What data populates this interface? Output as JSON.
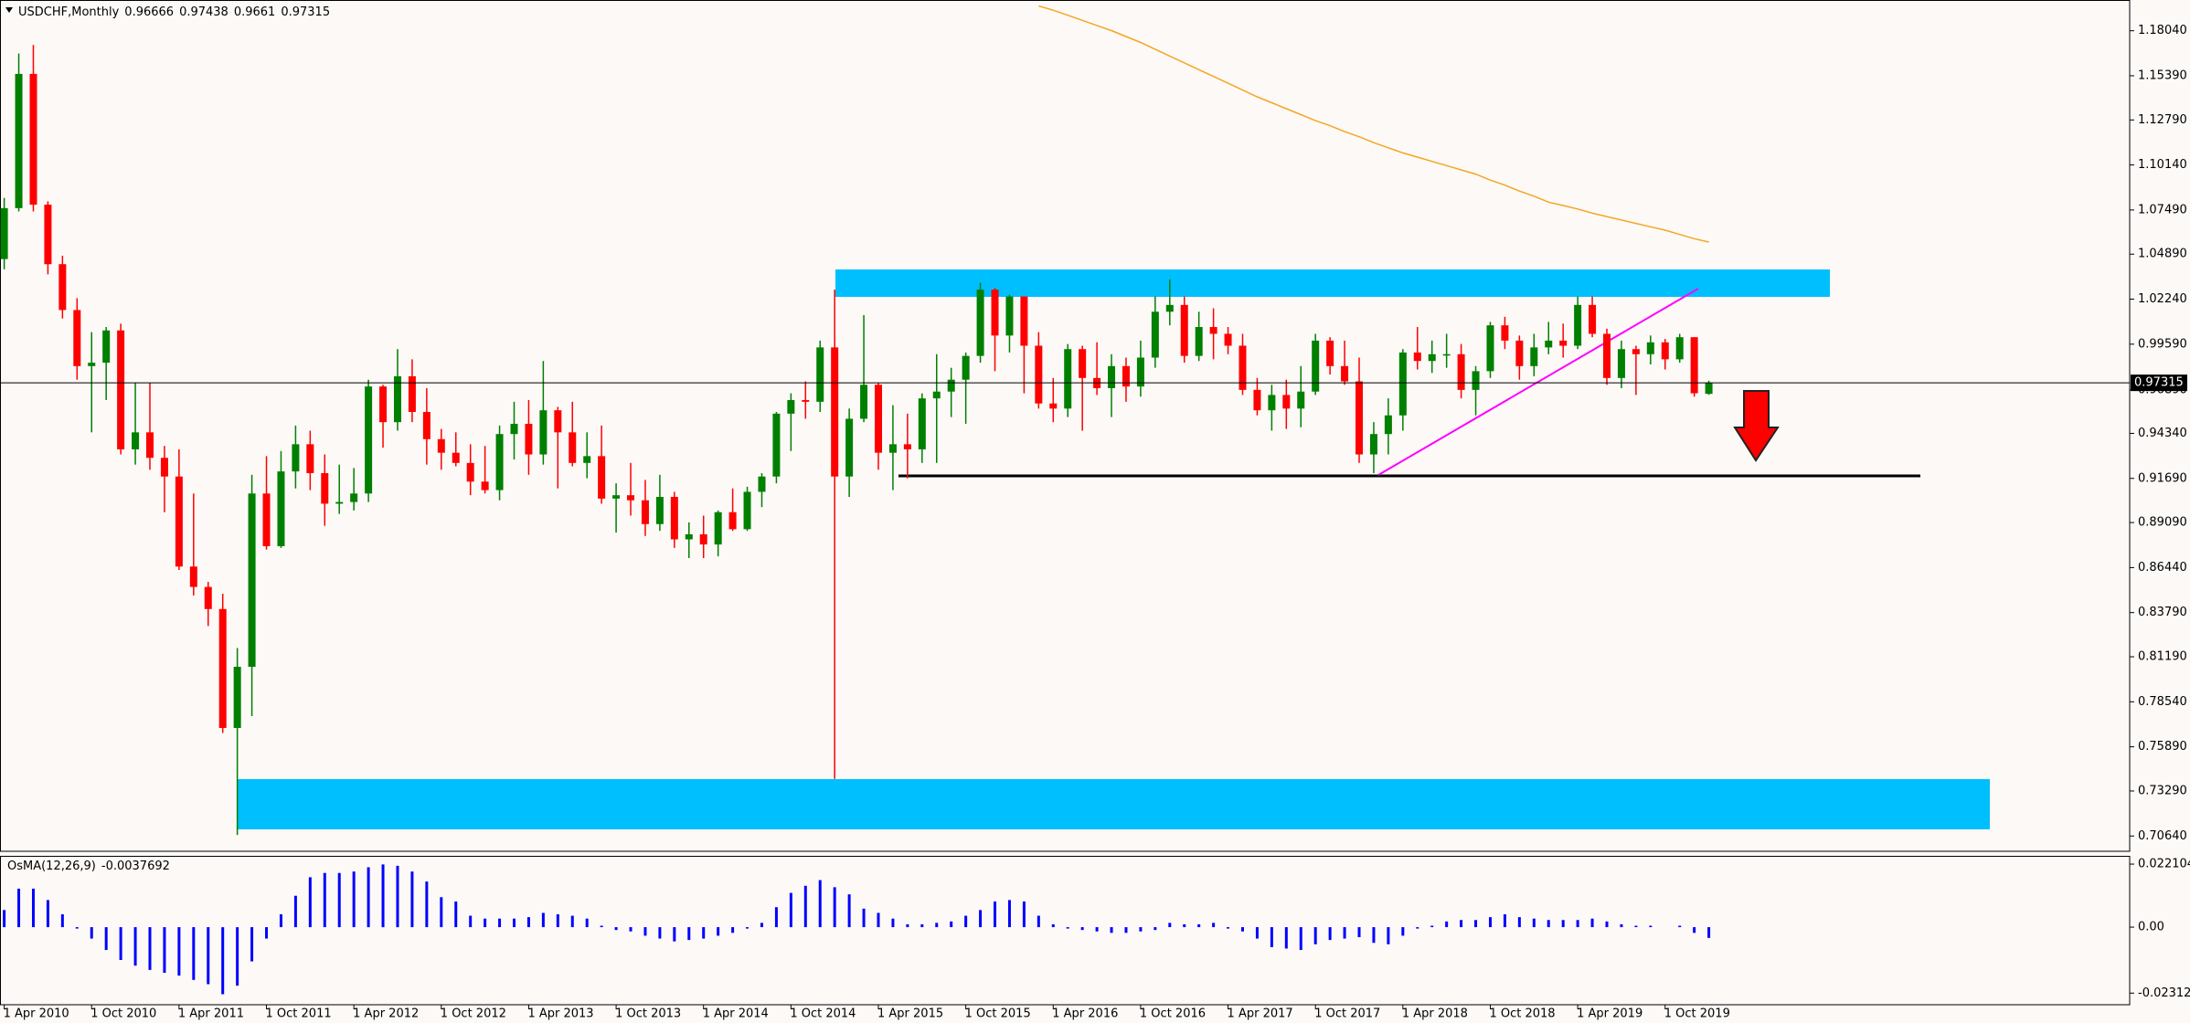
{
  "chart_data": [
    {
      "type": "candlestick",
      "title": "USDCHF,Monthly",
      "up_color": "#008000",
      "down_color": "#ff0000",
      "ma_color": "#f5a623",
      "categories": [
        "1 Apr 2010",
        null,
        null,
        null,
        null,
        null,
        "1 Oct 2010",
        null,
        null,
        null,
        null,
        null,
        "1 Apr 2011",
        null,
        null,
        null,
        null,
        null,
        "1 Oct 2011",
        null,
        null,
        null,
        null,
        null,
        "1 Apr 2012",
        null,
        null,
        null,
        null,
        null,
        "1 Oct 2012",
        null,
        null,
        null,
        null,
        null,
        "1 Apr 2013",
        null,
        null,
        null,
        null,
        null,
        "1 Oct 2013",
        null,
        null,
        null,
        null,
        null,
        "1 Apr 2014",
        null,
        null,
        null,
        null,
        null,
        "1 Oct 2014",
        null,
        null,
        null,
        null,
        null,
        "1 Apr 2015",
        null,
        null,
        null,
        null,
        null,
        "1 Oct 2015",
        null,
        null,
        null,
        null,
        null,
        "1 Apr 2016",
        null,
        null,
        null,
        null,
        null,
        "1 Oct 2016",
        null,
        null,
        null,
        null,
        null,
        "1 Apr 2017",
        null,
        null,
        null,
        null,
        null,
        "1 Oct 2017",
        null,
        null,
        null,
        null,
        null,
        "1 Apr 2018",
        null,
        null,
        null,
        null,
        null,
        "1 Oct 2018",
        null,
        null,
        null,
        null,
        null,
        "1 Apr 2019",
        null,
        null,
        null,
        null,
        null,
        "1 Oct 2019",
        null,
        null,
        null
      ],
      "open": [
        1.046,
        1.076,
        1.155,
        1.078,
        1.043,
        1.016,
        0.983,
        0.985,
        1.004,
        0.934,
        0.944,
        0.929,
        0.918,
        0.865,
        0.853,
        0.84,
        0.77,
        0.806,
        0.908,
        0.877,
        0.921,
        0.937,
        0.92,
        0.902,
        0.903,
        0.908,
        0.971,
        0.95,
        0.977,
        0.956,
        0.94,
        0.932,
        0.926,
        0.915,
        0.91,
        0.943,
        0.949,
        0.931,
        0.957,
        0.944,
        0.926,
        0.93,
        0.905,
        0.907,
        0.904,
        0.89,
        0.906,
        0.881,
        0.884,
        0.878,
        0.897,
        0.887,
        0.909,
        0.918,
        0.955,
        0.963,
        0.962,
        0.994,
        0.918,
        0.952,
        0.972,
        0.932,
        0.937,
        0.934,
        0.964,
        0.968,
        0.975,
        0.989,
        1.028,
        1.001,
        1.024,
        0.995,
        0.961,
        0.958,
        0.993,
        0.976,
        0.97,
        0.983,
        0.971,
        0.988,
        1.015,
        1.019,
        0.989,
        1.006,
        1.002,
        0.995,
        0.969,
        0.957,
        0.966,
        0.958,
        0.968,
        0.998,
        0.983,
        0.974,
        0.931,
        0.943,
        0.954,
        0.991,
        0.986,
        0.99,
        0.99,
        0.969,
        0.98,
        1.007,
        0.998,
        0.983,
        0.994,
        0.998,
        0.995,
        1.019,
        1.002,
        0.976,
        0.993,
        0.99,
        0.997,
        0.987,
        1.0,
        0.96666
      ],
      "high": [
        1.082,
        1.167,
        1.172,
        1.08,
        1.048,
        1.023,
        1.003,
        1.006,
        1.008,
        0.973,
        0.973,
        0.936,
        0.934,
        0.908,
        0.856,
        0.849,
        0.817,
        0.919,
        0.93,
        0.933,
        0.948,
        0.945,
        0.931,
        0.925,
        0.923,
        0.975,
        0.972,
        0.993,
        0.987,
        0.97,
        0.946,
        0.944,
        0.937,
        0.936,
        0.948,
        0.962,
        0.963,
        0.986,
        0.959,
        0.962,
        0.944,
        0.948,
        0.914,
        0.926,
        0.916,
        0.919,
        0.909,
        0.891,
        0.895,
        0.898,
        0.911,
        0.912,
        0.92,
        0.956,
        0.967,
        0.974,
        0.998,
        1.028,
        0.958,
        1.013,
        0.973,
        0.96,
        0.955,
        0.967,
        0.99,
        0.982,
        0.991,
        1.032,
        1.029,
        1.025,
        1.024,
        1.003,
        0.976,
        0.996,
        0.995,
        0.997,
        0.99,
        0.988,
        0.998,
        1.024,
        1.034,
        1.024,
        1.015,
        1.017,
        1.006,
        1.002,
        0.976,
        0.972,
        0.975,
        0.983,
        1.002,
        1.0,
        0.998,
        0.988,
        0.95,
        0.964,
        0.993,
        1.006,
        0.998,
        1.002,
        0.996,
        0.983,
        1.009,
        1.012,
        1.001,
        1.002,
        1.009,
        1.008,
        1.024,
        1.024,
        1.005,
        0.998,
        0.995,
        1.001,
        0.999,
        1.002,
        1.0,
        0.97438
      ],
      "low": [
        1.04,
        1.074,
        1.074,
        1.037,
        1.011,
        0.975,
        0.944,
        0.963,
        0.931,
        0.925,
        0.922,
        0.897,
        0.863,
        0.848,
        0.83,
        0.767,
        0.707,
        0.777,
        0.875,
        0.876,
        0.911,
        0.91,
        0.889,
        0.896,
        0.898,
        0.903,
        0.935,
        0.945,
        0.95,
        0.925,
        0.922,
        0.924,
        0.907,
        0.908,
        0.904,
        0.928,
        0.919,
        0.925,
        0.911,
        0.924,
        0.917,
        0.902,
        0.885,
        0.895,
        0.883,
        0.886,
        0.876,
        0.87,
        0.87,
        0.871,
        0.886,
        0.886,
        0.9,
        0.914,
        0.933,
        0.952,
        0.956,
        0.74,
        0.906,
        0.95,
        0.922,
        0.91,
        0.917,
        0.926,
        0.926,
        0.953,
        0.949,
        0.985,
        0.98,
        0.991,
        0.967,
        0.958,
        0.95,
        0.953,
        0.945,
        0.966,
        0.953,
        0.962,
        0.965,
        0.982,
        1.007,
        0.985,
        0.986,
        0.987,
        0.99,
        0.966,
        0.954,
        0.945,
        0.946,
        0.947,
        0.966,
        0.978,
        0.972,
        0.926,
        0.92,
        0.931,
        0.945,
        0.981,
        0.979,
        0.982,
        0.964,
        0.954,
        0.976,
        0.993,
        0.975,
        0.977,
        0.99,
        0.988,
        0.993,
        1.0,
        0.972,
        0.97,
        0.966,
        0.984,
        0.981,
        0.985,
        0.965,
        0.9661
      ],
      "close": [
        1.076,
        1.155,
        1.078,
        1.043,
        1.016,
        0.983,
        0.985,
        1.004,
        0.934,
        0.944,
        0.929,
        0.918,
        0.865,
        0.853,
        0.84,
        0.77,
        0.806,
        0.908,
        0.877,
        0.921,
        0.937,
        0.92,
        0.902,
        0.903,
        0.908,
        0.971,
        0.95,
        0.977,
        0.956,
        0.94,
        0.932,
        0.926,
        0.915,
        0.91,
        0.943,
        0.949,
        0.931,
        0.957,
        0.944,
        0.926,
        0.93,
        0.905,
        0.907,
        0.904,
        0.89,
        0.906,
        0.881,
        0.884,
        0.878,
        0.897,
        0.887,
        0.909,
        0.918,
        0.955,
        0.963,
        0.962,
        0.994,
        0.918,
        0.952,
        0.972,
        0.932,
        0.937,
        0.934,
        0.964,
        0.968,
        0.975,
        0.989,
        1.028,
        1.001,
        1.024,
        0.995,
        0.961,
        0.958,
        0.993,
        0.976,
        0.97,
        0.983,
        0.971,
        0.988,
        1.015,
        1.019,
        0.989,
        1.006,
        1.002,
        0.995,
        0.969,
        0.957,
        0.966,
        0.958,
        0.968,
        0.998,
        0.983,
        0.974,
        0.931,
        0.943,
        0.954,
        0.991,
        0.986,
        0.99,
        0.99,
        0.969,
        0.98,
        1.007,
        0.998,
        0.983,
        0.994,
        0.998,
        0.995,
        1.019,
        1.002,
        0.976,
        0.993,
        0.99,
        0.997,
        0.987,
        1.0,
        0.967,
        0.97315
      ],
      "ma": [
        null,
        null,
        null,
        null,
        null,
        null,
        null,
        null,
        null,
        null,
        null,
        null,
        null,
        null,
        null,
        null,
        null,
        null,
        null,
        null,
        null,
        null,
        null,
        null,
        null,
        null,
        null,
        null,
        null,
        null,
        null,
        null,
        null,
        null,
        null,
        null,
        null,
        null,
        null,
        null,
        null,
        null,
        null,
        null,
        null,
        null,
        null,
        null,
        null,
        null,
        null,
        null,
        null,
        null,
        null,
        null,
        null,
        null,
        null,
        null,
        null,
        null,
        null,
        null,
        null,
        null,
        null,
        null,
        null,
        null,
        null,
        1.195,
        1.1925,
        1.1895,
        1.1865,
        1.1835,
        1.1805,
        1.177,
        1.1735,
        1.1695,
        1.1655,
        1.1615,
        1.1575,
        1.1535,
        1.1495,
        1.1455,
        1.1415,
        1.138,
        1.1345,
        1.131,
        1.1275,
        1.1245,
        1.121,
        1.118,
        1.1145,
        1.1115,
        1.1085,
        1.106,
        1.1035,
        1.101,
        1.0985,
        1.096,
        1.0925,
        1.0895,
        1.086,
        1.083,
        1.0795,
        1.0775,
        1.0755,
        1.073,
        1.071,
        1.069,
        1.067,
        1.065,
        1.063,
        1.0605,
        1.058,
        1.056
      ],
      "current_price": 0.97315,
      "ylim": [
        0.6974,
        1.1985
      ],
      "yticks": [
        {
          "value": 1.1804,
          "label": "1.18040"
        },
        {
          "value": 1.1539,
          "label": "1.15390"
        },
        {
          "value": 1.1279,
          "label": "1.12790"
        },
        {
          "value": 1.1014,
          "label": "1.10140"
        },
        {
          "value": 1.0749,
          "label": "1.07490"
        },
        {
          "value": 1.0489,
          "label": "1.04890"
        },
        {
          "value": 1.0224,
          "label": "1.02240"
        },
        {
          "value": 0.9959,
          "label": "0.99590"
        },
        {
          "value": 0.9689,
          "label": "0.96890"
        },
        {
          "value": 0.9434,
          "label": "0.94340"
        },
        {
          "value": 0.9169,
          "label": "0.91690"
        },
        {
          "value": 0.8909,
          "label": "0.89090"
        },
        {
          "value": 0.8644,
          "label": "0.86440"
        },
        {
          "value": 0.8379,
          "label": "0.83790"
        },
        {
          "value": 0.8119,
          "label": "0.81190"
        },
        {
          "value": 0.7854,
          "label": "0.78540"
        },
        {
          "value": 0.7589,
          "label": "0.75890"
        },
        {
          "value": 0.7329,
          "label": "0.73290"
        },
        {
          "value": 0.7064,
          "label": "0.70640"
        }
      ]
    },
    {
      "type": "bar",
      "title": "OsMA(12,26,9)",
      "color": "#0000ff",
      "values": [
        0.006,
        0.0135,
        0.0135,
        0.0095,
        0.0045,
        -0.0005,
        -0.004,
        -0.008,
        -0.0115,
        -0.0135,
        -0.015,
        -0.016,
        -0.017,
        -0.0185,
        -0.02,
        -0.0235,
        -0.0205,
        -0.012,
        -0.004,
        0.0045,
        0.011,
        0.0175,
        0.019,
        0.019,
        0.0195,
        0.021,
        0.022,
        0.0215,
        0.0195,
        0.016,
        0.0105,
        0.009,
        0.004,
        0.003,
        0.003,
        0.003,
        0.0035,
        0.005,
        0.0045,
        0.004,
        0.003,
        0.0005,
        -0.001,
        -0.0015,
        -0.003,
        -0.004,
        -0.005,
        -0.0045,
        -0.004,
        -0.003,
        -0.002,
        -0.0005,
        0.0015,
        0.007,
        0.012,
        0.0145,
        0.0165,
        0.014,
        0.0115,
        0.0065,
        0.005,
        0.003,
        0.001,
        0.001,
        0.0015,
        0.002,
        0.004,
        0.006,
        0.009,
        0.0095,
        0.009,
        0.004,
        0.001,
        -0.0005,
        -0.001,
        -0.0015,
        -0.002,
        -0.002,
        -0.0015,
        -0.001,
        0.0015,
        0.001,
        0.001,
        0.0015,
        -0.0005,
        -0.0015,
        -0.004,
        -0.007,
        -0.0075,
        -0.008,
        -0.006,
        -0.0045,
        -0.004,
        -0.0035,
        -0.0055,
        -0.006,
        -0.003,
        -0.0005,
        0.0005,
        0.002,
        0.0025,
        0.0025,
        0.0035,
        0.0045,
        0.0035,
        0.003,
        0.0025,
        0.0025,
        0.0025,
        0.003,
        0.002,
        0.001,
        0.0005,
        0.0005,
        0.0,
        0.0005,
        -0.002,
        -0.0037692
      ],
      "ylim": [
        -0.0272,
        0.025
      ],
      "yticks": [
        0.022104,
        {
          "value": 0,
          "label": "0.00"
        },
        -0.023124
      ]
    }
  ]
}
